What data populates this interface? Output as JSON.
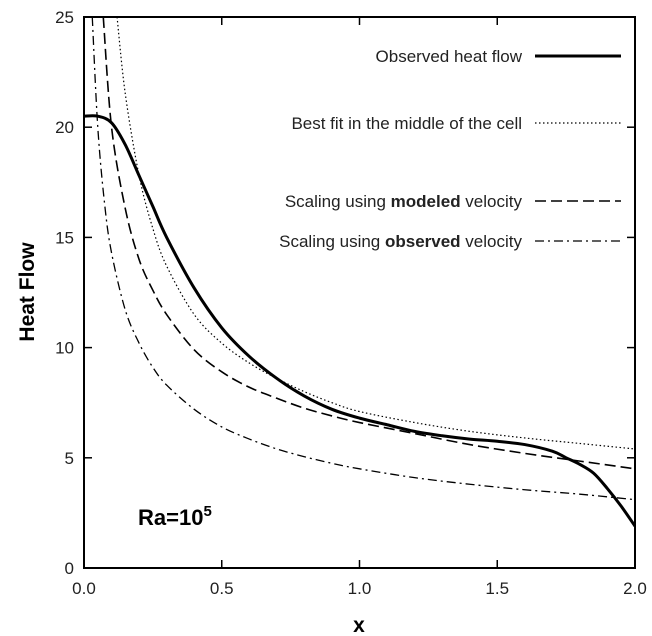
{
  "chart_data": {
    "type": "line",
    "xlabel": "x",
    "ylabel": "Heat Flow",
    "xlim": [
      0,
      2
    ],
    "ylim": [
      0,
      25
    ],
    "x_ticks": [
      "0.0",
      "0.5",
      "1.0",
      "1.5",
      "2.0"
    ],
    "y_ticks": [
      "0",
      "5",
      "10",
      "15",
      "20",
      "25"
    ],
    "grid": false,
    "legend_position": "top-right",
    "annotation": {
      "base": "Ra=10",
      "exponent": "5"
    },
    "series": [
      {
        "name": "Observed heat flow",
        "legend_parts": [
          {
            "text": "Observed heat flow",
            "bold": false
          }
        ],
        "style": "solid-thick",
        "x": [
          0.0,
          0.05,
          0.1,
          0.15,
          0.2,
          0.25,
          0.3,
          0.4,
          0.5,
          0.6,
          0.7,
          0.8,
          0.9,
          1.0,
          1.1,
          1.2,
          1.3,
          1.4,
          1.5,
          1.6,
          1.7,
          1.75,
          1.8,
          1.85,
          1.9,
          1.95,
          2.0
        ],
        "y": [
          20.5,
          20.5,
          20.2,
          19.2,
          17.8,
          16.4,
          15.0,
          12.7,
          10.9,
          9.6,
          8.6,
          7.8,
          7.2,
          6.8,
          6.5,
          6.2,
          6.0,
          5.85,
          5.75,
          5.6,
          5.3,
          5.0,
          4.7,
          4.3,
          3.6,
          2.8,
          1.9
        ]
      },
      {
        "name": "Best fit in the middle of the cell",
        "legend_parts": [
          {
            "text": "Best fit in the middle of the cell",
            "bold": false
          }
        ],
        "style": "dotted",
        "x": [
          0.12,
          0.15,
          0.2,
          0.25,
          0.3,
          0.4,
          0.5,
          0.6,
          0.7,
          0.8,
          0.9,
          1.0,
          1.2,
          1.4,
          1.6,
          1.8,
          2.0
        ],
        "y": [
          25.0,
          21.5,
          17.8,
          15.4,
          13.7,
          11.5,
          10.2,
          9.3,
          8.6,
          8.0,
          7.5,
          7.1,
          6.6,
          6.2,
          5.9,
          5.65,
          5.4
        ]
      },
      {
        "name": "Scaling using modeled velocity",
        "legend_parts": [
          {
            "text": "Scaling using ",
            "bold": false
          },
          {
            "text": "modeled",
            "bold": true
          },
          {
            "text": " velocity",
            "bold": false
          }
        ],
        "style": "dashed",
        "x": [
          0.07,
          0.1,
          0.15,
          0.2,
          0.25,
          0.3,
          0.4,
          0.5,
          0.6,
          0.7,
          0.8,
          0.9,
          1.0,
          1.2,
          1.4,
          1.6,
          1.8,
          2.0
        ],
        "y": [
          25.0,
          20.0,
          16.3,
          14.0,
          12.6,
          11.5,
          9.9,
          8.9,
          8.2,
          7.7,
          7.25,
          6.9,
          6.6,
          6.1,
          5.6,
          5.2,
          4.85,
          4.5
        ]
      },
      {
        "name": "Scaling using observed velocity",
        "legend_parts": [
          {
            "text": "Scaling using ",
            "bold": false
          },
          {
            "text": "observed",
            "bold": true
          },
          {
            "text": " velocity",
            "bold": false
          }
        ],
        "style": "dashdot",
        "x": [
          0.03,
          0.05,
          0.075,
          0.1,
          0.15,
          0.2,
          0.25,
          0.3,
          0.4,
          0.5,
          0.6,
          0.7,
          0.8,
          0.9,
          1.0,
          1.2,
          1.4,
          1.6,
          1.8,
          2.0
        ],
        "y": [
          25.0,
          20.0,
          16.5,
          14.3,
          11.7,
          10.2,
          9.1,
          8.3,
          7.2,
          6.4,
          5.85,
          5.4,
          5.05,
          4.75,
          4.5,
          4.1,
          3.8,
          3.55,
          3.35,
          3.1
        ]
      }
    ]
  }
}
